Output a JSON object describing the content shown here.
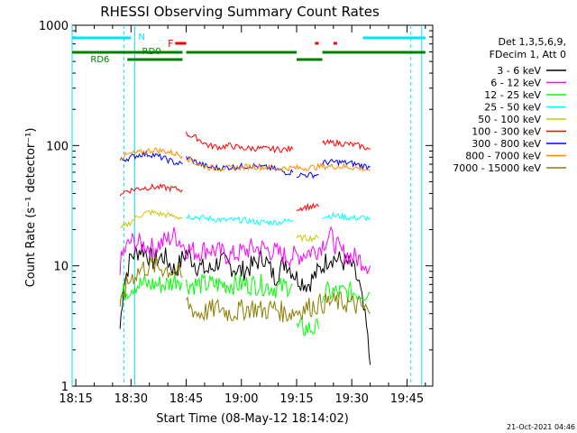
{
  "chart_data": {
    "type": "line",
    "title": "RHESSI Observing Summary Count Rates",
    "xlabel": "Start Time (08-May-12 18:14:02)",
    "ylabel": "Count Rate (s⁻¹ detector⁻¹)",
    "ylog": true,
    "ylim": [
      1,
      1000
    ],
    "xlim": [
      "18:14",
      "19:52"
    ],
    "x_ticks": [
      "18:15",
      "18:30",
      "18:45",
      "19:00",
      "19:15",
      "19:30",
      "19:45"
    ],
    "y_ticks": [
      "1",
      "10",
      "100",
      "1000"
    ],
    "grid": false,
    "legend_position": "right",
    "legend_header": [
      "Det 1,3,5,6,9,",
      "FDecim 1, Att 0"
    ],
    "footer_timestamp": "21-Oct-2021 04:46",
    "annotations": {
      "night_label": "N",
      "flare_label": "F",
      "saa_label": "RD0",
      "att_label": "RD6"
    },
    "intervals": {
      "night": [
        [
          "18:14",
          "18:30"
        ],
        [
          "19:33",
          "19:50"
        ]
      ],
      "flare": [
        [
          "18:42",
          "18:45"
        ],
        [
          "19:20",
          "19:21"
        ],
        [
          "19:25",
          "19:26"
        ]
      ],
      "rd0": [
        [
          "18:14",
          "18:44"
        ],
        [
          "18:45",
          "19:15"
        ],
        [
          "19:22",
          "19:50"
        ]
      ],
      "rd6": [
        [
          "18:29",
          "18:44"
        ],
        [
          "19:15",
          "19:22"
        ]
      ],
      "day_boundaries": [
        "18:14",
        "18:31",
        "19:49"
      ],
      "night_boundaries": [
        "18:31",
        "19:49"
      ]
    },
    "series": [
      {
        "name": "3 - 6 keV",
        "color": "#000000",
        "segments": [
          {
            "x": [
              "18:27",
              "18:28",
              "18:30",
              "18:33",
              "18:36",
              "18:39",
              "18:42",
              "18:45",
              "18:48",
              "18:51",
              "18:54",
              "18:57",
              "19:00",
              "19:03",
              "19:06",
              "19:09",
              "19:12",
              "19:15",
              "19:18",
              "19:21",
              "19:24",
              "19:27",
              "19:30",
              "19:32",
              "19:34",
              "19:35"
            ],
            "y": [
              3,
              7,
              12,
              14,
              11,
              12,
              9,
              13,
              10,
              9,
              11,
              10,
              9,
              10,
              12,
              8,
              11,
              8,
              7,
              9,
              12,
              11,
              10,
              7,
              3,
              1.5
            ]
          }
        ]
      },
      {
        "name": "6 - 12 keV",
        "color": "#ff00ff",
        "segments": [
          {
            "x": [
              "18:27",
              "18:28",
              "18:30",
              "18:33",
              "18:36",
              "18:39",
              "18:42",
              "18:45",
              "18:48",
              "18:51",
              "18:54",
              "18:57",
              "19:00",
              "19:03",
              "19:06",
              "19:09",
              "19:12",
              "19:15",
              "19:18",
              "19:21",
              "19:24",
              "19:27",
              "19:30",
              "19:33",
              "19:35"
            ],
            "y": [
              10,
              13,
              16,
              15,
              14,
              16,
              18,
              14,
              13,
              14,
              13,
              12,
              13,
              14,
              14,
              13,
              12,
              12,
              13,
              14,
              18,
              13,
              12,
              11,
              10
            ]
          }
        ]
      },
      {
        "name": "12 - 25 keV",
        "color": "#00ff00",
        "segments": [
          {
            "x": [
              "18:27",
              "18:28",
              "18:31",
              "18:34",
              "18:37",
              "18:40",
              "18:43",
              "18:44"
            ],
            "y": [
              5,
              6,
              7,
              7,
              7,
              7,
              8,
              7
            ]
          },
          {
            "x": [
              "18:45",
              "18:50",
              "18:55",
              "19:00",
              "19:05",
              "19:10",
              "19:14"
            ],
            "y": [
              7,
              7,
              7,
              7,
              7,
              6.5,
              7
            ]
          },
          {
            "x": [
              "19:15",
              "19:18",
              "19:21"
            ],
            "y": [
              3,
              3,
              3
            ]
          },
          {
            "x": [
              "19:22",
              "19:26",
              "19:30",
              "19:33",
              "19:35"
            ],
            "y": [
              6,
              6,
              6,
              6,
              6
            ]
          }
        ]
      },
      {
        "name": "25 - 50 keV",
        "color": "#00ffff",
        "segments": [
          {
            "x": [
              "18:45",
              "18:50",
              "18:55",
              "19:00",
              "19:05",
              "19:10",
              "19:14"
            ],
            "y": [
              26,
              25,
              24,
              24,
              23,
              23,
              24
            ]
          },
          {
            "x": [
              "19:22",
              "19:26",
              "19:30",
              "19:35"
            ],
            "y": [
              26,
              26,
              25,
              25
            ]
          }
        ]
      },
      {
        "name": "50 - 100 keV",
        "color": "#c8c800",
        "segments": [
          {
            "x": [
              "18:27",
              "18:29",
              "18:32",
              "18:35",
              "18:38",
              "18:41",
              "18:44"
            ],
            "y": [
              20,
              22,
              26,
              28,
              27,
              26,
              25
            ]
          },
          {
            "x": [
              "19:15",
              "19:18",
              "19:21"
            ],
            "y": [
              17,
              17,
              17
            ]
          }
        ]
      },
      {
        "name": "100 - 300 keV",
        "color": "#ff0000",
        "segments": [
          {
            "x": [
              "18:27",
              "18:29",
              "18:32",
              "18:35",
              "18:38",
              "18:41",
              "18:44"
            ],
            "y": [
              40,
              42,
              44,
              45,
              45,
              44,
              43
            ]
          },
          {
            "x": [
              "18:45",
              "18:48",
              "18:51",
              "18:54",
              "18:57",
              "19:00",
              "19:03",
              "19:06",
              "19:09",
              "19:12",
              "19:14"
            ],
            "y": [
              125,
              115,
              100,
              97,
              100,
              95,
              95,
              94,
              93,
              93,
              93
            ]
          },
          {
            "x": [
              "19:15",
              "19:18",
              "19:21"
            ],
            "y": [
              30,
              31,
              31
            ]
          },
          {
            "x": [
              "19:22",
              "19:26",
              "19:30",
              "19:33",
              "19:35"
            ],
            "y": [
              105,
              105,
              102,
              98,
              93
            ]
          }
        ]
      },
      {
        "name": "300 - 800 keV",
        "color": "#0000ff",
        "segments": [
          {
            "x": [
              "18:27",
              "18:30",
              "18:33",
              "18:36",
              "18:39",
              "18:42",
              "18:44"
            ],
            "y": [
              75,
              80,
              85,
              84,
              78,
              72,
              70
            ]
          },
          {
            "x": [
              "18:45",
              "18:48",
              "18:51",
              "18:54",
              "18:57",
              "19:00",
              "19:03",
              "19:06",
              "19:09",
              "19:12",
              "19:14"
            ],
            "y": [
              80,
              72,
              66,
              65,
              66,
              67,
              68,
              66,
              64,
              60,
              60
            ]
          },
          {
            "x": [
              "19:15",
              "19:18",
              "19:21"
            ],
            "y": [
              57,
              57,
              57
            ]
          },
          {
            "x": [
              "19:22",
              "19:26",
              "19:30",
              "19:33",
              "19:35"
            ],
            "y": [
              72,
              73,
              71,
              68,
              66
            ]
          }
        ]
      },
      {
        "name": "800 - 7000 keV",
        "color": "#ff8c00",
        "segments": [
          {
            "x": [
              "18:27",
              "18:30",
              "18:33",
              "18:36",
              "18:39",
              "18:42",
              "18:44"
            ],
            "y": [
              80,
              85,
              88,
              92,
              90,
              86,
              82
            ]
          },
          {
            "x": [
              "18:45",
              "18:48",
              "18:51",
              "18:54",
              "18:57",
              "19:00",
              "19:03",
              "19:06",
              "19:09",
              "19:12",
              "19:14",
              "19:17",
              "19:20",
              "19:22",
              "19:26",
              "19:30",
              "19:33",
              "19:35"
            ],
            "y": [
              80,
              70,
              66,
              65,
              65,
              66,
              67,
              66,
              65,
              65,
              65,
              65,
              66,
              67,
              67,
              66,
              64,
              63
            ]
          }
        ]
      },
      {
        "name": "7000 - 15000 keV",
        "color": "#8b7d00",
        "segments": [
          {
            "x": [
              "18:27",
              "18:28",
              "18:30",
              "18:33",
              "18:36",
              "18:39",
              "18:42",
              "18:44"
            ],
            "y": [
              4,
              6,
              8,
              9.5,
              10,
              9.5,
              9,
              8
            ]
          },
          {
            "x": [
              "18:45",
              "18:48",
              "18:51",
              "18:54",
              "18:57",
              "19:00",
              "19:03",
              "19:06",
              "19:09",
              "19:12",
              "19:15",
              "19:18",
              "19:21",
              "19:24",
              "19:27",
              "19:30",
              "19:33",
              "19:35"
            ],
            "y": [
              5,
              4,
              4.2,
              4.5,
              4,
              4.3,
              4.5,
              4.2,
              4.5,
              4,
              4.2,
              4.5,
              4.8,
              5,
              5,
              4.8,
              4.5,
              4
            ]
          }
        ]
      }
    ]
  }
}
